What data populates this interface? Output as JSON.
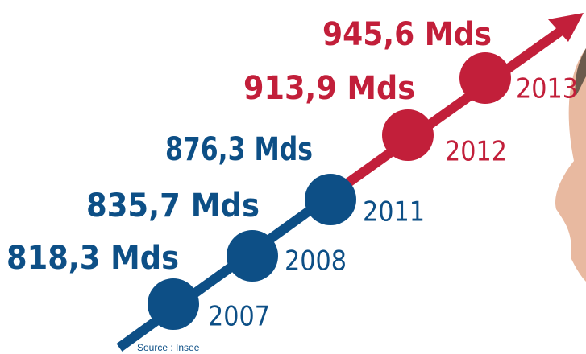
{
  "items": [
    {
      "year": "2007",
      "label": "818,3 Mds",
      "color": "#0d4f86"
    },
    {
      "year": "2008",
      "label": "835,7 Mds",
      "color": "#0d4f86"
    },
    {
      "year": "2011",
      "label": "876,3 Mds",
      "color": "#0d4f86"
    },
    {
      "year": "2012",
      "label": "913,9 Mds",
      "color": "#c21f3a"
    },
    {
      "year": "2013",
      "label": "945,6 Mds",
      "color": "#c21f3a"
    }
  ],
  "source": "Source : Insee"
}
